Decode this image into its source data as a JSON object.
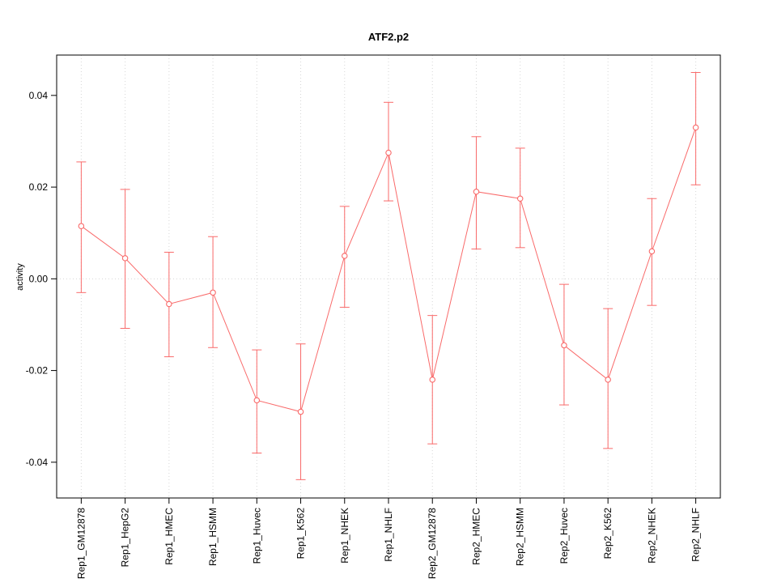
{
  "chart_data": {
    "type": "line",
    "title": "ATF2.p2",
    "ylabel": "activity",
    "xlabel": "",
    "categories": [
      "Rep1_GM12878",
      "Rep1_HepG2",
      "Rep1_HMEC",
      "Rep1_HSMM",
      "Rep1_Huvec",
      "Rep1_K562",
      "Rep1_NHEK",
      "Rep1_NHLF",
      "Rep2_GM12878",
      "Rep2_HMEC",
      "Rep2_HSMM",
      "Rep2_Huvec",
      "Rep2_K562",
      "Rep2_NHEK",
      "Rep2_NHLF"
    ],
    "series": [
      {
        "name": "activity",
        "values": [
          0.0115,
          0.0045,
          -0.0055,
          -0.003,
          -0.0265,
          -0.029,
          0.005,
          0.0275,
          -0.022,
          0.019,
          0.0175,
          -0.0145,
          -0.022,
          0.006,
          0.033
        ],
        "upper": [
          0.0255,
          0.0195,
          0.0058,
          0.0092,
          -0.0155,
          -0.0142,
          0.0158,
          0.0385,
          -0.008,
          0.031,
          0.0285,
          -0.0012,
          -0.0065,
          0.0175,
          0.045
        ],
        "lower": [
          -0.003,
          -0.0108,
          -0.017,
          -0.015,
          -0.038,
          -0.0438,
          -0.0062,
          0.017,
          -0.036,
          0.0065,
          0.0068,
          -0.0275,
          -0.037,
          -0.0058,
          0.0205
        ]
      }
    ],
    "ylim": [
      -0.0478,
      0.0488
    ],
    "y_ticks": [
      -0.04,
      -0.02,
      0,
      0.02,
      0.04
    ],
    "grid": "dotted vertical line at each category plus dotted horizontal line at zero",
    "legend": "none",
    "marker": "open-circle",
    "error_bars": true,
    "line_color": "#f96a6a",
    "grid_color": "#d6d6d6",
    "axis_color": "#000000",
    "background": "#ffffff"
  }
}
